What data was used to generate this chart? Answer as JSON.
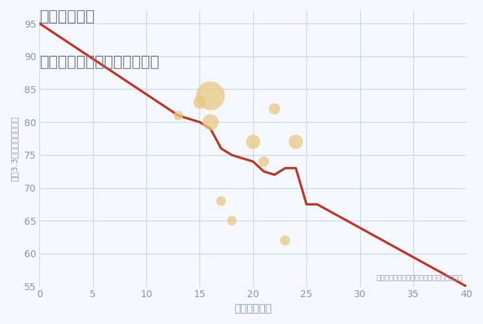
{
  "title_line1": "東京都相原駅",
  "title_line2": "築年数別中古マンション価格",
  "xlabel": "築年数（年）",
  "ylabel": "坪（3.3㎡）単価（万円）",
  "annotation": "円の大きさは、取引のあった物件面積を示す",
  "xlim": [
    0,
    40
  ],
  "ylim": [
    55,
    97
  ],
  "xticks": [
    0,
    5,
    10,
    15,
    20,
    25,
    30,
    35,
    40
  ],
  "yticks": [
    55,
    60,
    65,
    70,
    75,
    80,
    85,
    90,
    95
  ],
  "line_color": "#c0392b",
  "line_points_x": [
    0,
    13,
    14,
    15,
    16,
    17,
    18,
    19,
    20,
    21,
    22,
    23,
    24,
    25,
    26,
    40
  ],
  "line_points_y": [
    95,
    81,
    80.5,
    80,
    79,
    76,
    75,
    74.5,
    74,
    72.5,
    72,
    73,
    73,
    67.5,
    67.5,
    55
  ],
  "scatter_x": [
    13,
    15,
    16,
    16,
    17,
    18,
    20,
    21,
    22,
    23,
    24
  ],
  "scatter_y": [
    81,
    83,
    84,
    80,
    68,
    65,
    77,
    74,
    82,
    62,
    77
  ],
  "scatter_size": [
    100,
    180,
    900,
    280,
    100,
    100,
    220,
    120,
    140,
    110,
    220
  ],
  "scatter_color": "#e8c882",
  "scatter_alpha": 0.75,
  "bg_color": "#f5f8ff",
  "plot_bg_color": "#f5f8ff",
  "grid_color": "#c8d4e8",
  "title_color": "#777777",
  "axis_color": "#8899aa",
  "annotation_color": "#8899bb",
  "title_fontsize": 16,
  "xlabel_fontsize": 11,
  "ylabel_fontsize": 9
}
